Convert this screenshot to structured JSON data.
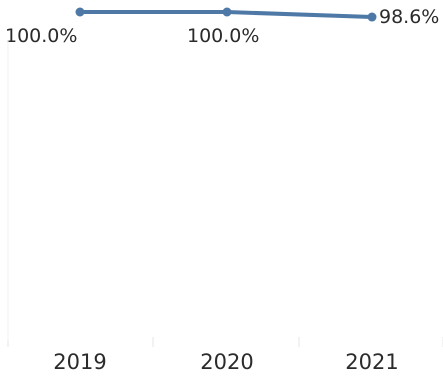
{
  "chart_data": {
    "type": "line",
    "categories": [
      "2019",
      "2020",
      "2021"
    ],
    "series": [
      {
        "values": [
          100.0,
          100.0,
          98.6
        ],
        "labels": [
          "100.0%",
          "100.0%",
          "98.6%"
        ]
      }
    ],
    "grid": false,
    "colors": {
      "line": "#4e79a7",
      "gridline": "#e4e4e4",
      "text": "#2b2b2b"
    }
  }
}
